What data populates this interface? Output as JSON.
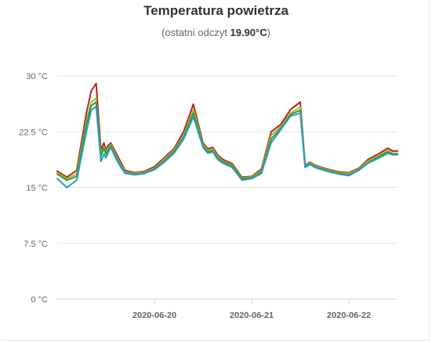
{
  "chart_data": {
    "type": "line",
    "title": "Temperatura powietrza",
    "subtitle_prefix": "(ostatni odczyt",
    "subtitle_value": "19.90",
    "subtitle_unit": "°C",
    "subtitle_suffix": ")",
    "xlabel": "",
    "ylabel": "",
    "ylim": [
      0,
      30
    ],
    "yticks": [
      {
        "value": 0,
        "label": "0 °C"
      },
      {
        "value": 7.5,
        "label": "7.5 °C"
      },
      {
        "value": 15,
        "label": "15 °C"
      },
      {
        "value": 22.5,
        "label": "22.5 °C"
      },
      {
        "value": 30,
        "label": "30 °C"
      }
    ],
    "xlim": [
      0,
      3.5
    ],
    "xticks": [
      {
        "value": 1,
        "label": "2020-06-20"
      },
      {
        "value": 2,
        "label": "2020-06-21"
      },
      {
        "value": 3,
        "label": "2020-06-22"
      }
    ],
    "grid": true,
    "legend": "none",
    "x": [
      0,
      0.1,
      0.2,
      0.3,
      0.35,
      0.4,
      0.45,
      0.48,
      0.5,
      0.52,
      0.55,
      0.6,
      0.65,
      0.7,
      0.8,
      0.9,
      1.0,
      1.1,
      1.2,
      1.3,
      1.4,
      1.5,
      1.55,
      1.6,
      1.65,
      1.7,
      1.8,
      1.9,
      2.0,
      2.1,
      2.2,
      2.3,
      2.4,
      2.5,
      2.55,
      2.6,
      2.65,
      2.7,
      2.8,
      2.9,
      3.0,
      3.1,
      3.2,
      3.3,
      3.4,
      3.45,
      3.5
    ],
    "series": [
      {
        "color": "#b22222",
        "values": [
          17.2,
          16.4,
          17.3,
          25.0,
          28.0,
          29.0,
          20.0,
          21.0,
          20.0,
          20.6,
          21.0,
          19.8,
          18.5,
          17.3,
          17.0,
          17.2,
          17.8,
          19.0,
          20.2,
          22.5,
          26.2,
          21.0,
          20.2,
          20.4,
          19.4,
          18.8,
          18.2,
          16.4,
          16.5,
          17.5,
          22.5,
          23.5,
          25.5,
          26.5,
          18.0,
          18.4,
          18.0,
          17.8,
          17.4,
          17.1,
          17.0,
          17.6,
          18.8,
          19.5,
          20.3,
          19.9,
          19.9
        ]
      },
      {
        "color": "#b5b82a",
        "values": [
          17.0,
          16.2,
          16.8,
          24.0,
          26.5,
          27.0,
          19.5,
          20.5,
          19.7,
          20.3,
          20.8,
          19.5,
          18.2,
          17.1,
          16.9,
          17.1,
          17.6,
          18.8,
          20.0,
          22.0,
          25.5,
          20.8,
          20.0,
          20.2,
          19.2,
          18.6,
          18.0,
          16.3,
          16.4,
          17.3,
          22.0,
          23.2,
          25.0,
          25.8,
          17.9,
          18.3,
          17.9,
          17.7,
          17.3,
          17.0,
          16.9,
          17.5,
          18.6,
          19.3,
          20.0,
          19.6,
          19.6
        ]
      },
      {
        "color": "#2e9e3e",
        "values": [
          16.8,
          16.0,
          16.5,
          23.5,
          26.0,
          26.5,
          19.3,
          20.3,
          19.5,
          20.0,
          20.6,
          19.3,
          18.0,
          17.0,
          16.8,
          17.0,
          17.5,
          18.6,
          19.8,
          21.8,
          25.0,
          20.6,
          19.8,
          20.0,
          19.0,
          18.5,
          17.9,
          16.2,
          16.3,
          17.1,
          21.5,
          23.0,
          24.8,
          25.4,
          17.8,
          18.2,
          17.8,
          17.6,
          17.2,
          16.9,
          16.7,
          17.4,
          18.4,
          19.1,
          19.8,
          19.5,
          19.5
        ]
      },
      {
        "color": "#2b9cc4",
        "values": [
          16.2,
          15.0,
          16.0,
          22.5,
          25.4,
          25.9,
          18.5,
          19.5,
          19.0,
          19.6,
          20.4,
          19.0,
          17.8,
          16.9,
          16.7,
          16.9,
          17.4,
          18.4,
          19.6,
          21.5,
          24.5,
          20.4,
          19.6,
          19.8,
          18.8,
          18.3,
          17.7,
          16.0,
          16.2,
          16.9,
          21.0,
          22.8,
          24.6,
          25.0,
          17.7,
          18.1,
          17.7,
          17.5,
          17.1,
          16.8,
          16.6,
          17.3,
          18.3,
          18.9,
          19.6,
          19.4,
          19.4
        ]
      }
    ]
  }
}
